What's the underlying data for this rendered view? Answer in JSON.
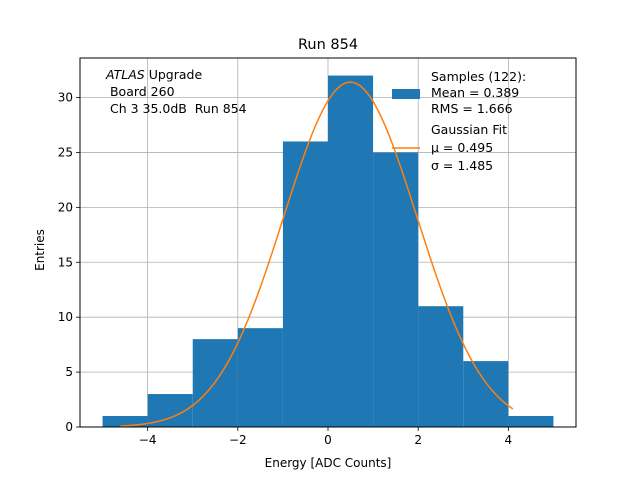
{
  "chart_data": {
    "type": "bar",
    "title": "Run 854",
    "xlabel": "Energy [ADC Counts]",
    "ylabel": "Entries",
    "xlim": [
      -5.5,
      5.5
    ],
    "ylim": [
      0,
      33.6
    ],
    "grid": true,
    "x_ticks": [
      -4,
      -2,
      0,
      2,
      4
    ],
    "x_tick_labels": [
      "−4",
      "−2",
      "0",
      "2",
      "4"
    ],
    "y_ticks": [
      0,
      5,
      10,
      15,
      20,
      25,
      30
    ],
    "y_tick_labels": [
      "0",
      "5",
      "10",
      "15",
      "20",
      "25",
      "30"
    ],
    "bins": [
      {
        "x0": -5,
        "x1": -4,
        "count": 1
      },
      {
        "x0": -4,
        "x1": -3,
        "count": 3
      },
      {
        "x0": -3,
        "x1": -2,
        "count": 8
      },
      {
        "x0": -2,
        "x1": -1,
        "count": 9
      },
      {
        "x0": -1,
        "x1": 0,
        "count": 26
      },
      {
        "x0": 0,
        "x1": 1,
        "count": 32
      },
      {
        "x0": 1,
        "x1": 2,
        "count": 25
      },
      {
        "x0": 2,
        "x1": 3,
        "count": 11
      },
      {
        "x0": 3,
        "x1": 4,
        "count": 6
      },
      {
        "x0": 4,
        "x1": 5,
        "count": 1
      }
    ],
    "fit": {
      "amplitude": 31.4,
      "mu": 0.495,
      "sigma": 1.485,
      "x_range": [
        -4.6,
        4.1
      ]
    },
    "colors": {
      "bars": "#1f77b4",
      "fit": "#ff7f0e"
    },
    "annotation": {
      "italic": "ATLAS",
      "rest": " Upgrade",
      "line2": " Board 260",
      "line3": " Ch 3 35.0dB  Run 854"
    },
    "legend": {
      "placement": "top-right",
      "samples_line1": "Samples (122):",
      "samples_line2": "Mean = 0.389",
      "samples_line3": "RMS = 1.666",
      "fit_line1": "Gaussian Fit",
      "fit_line2": "μ = 0.495",
      "fit_line3": "σ = 1.485"
    }
  }
}
